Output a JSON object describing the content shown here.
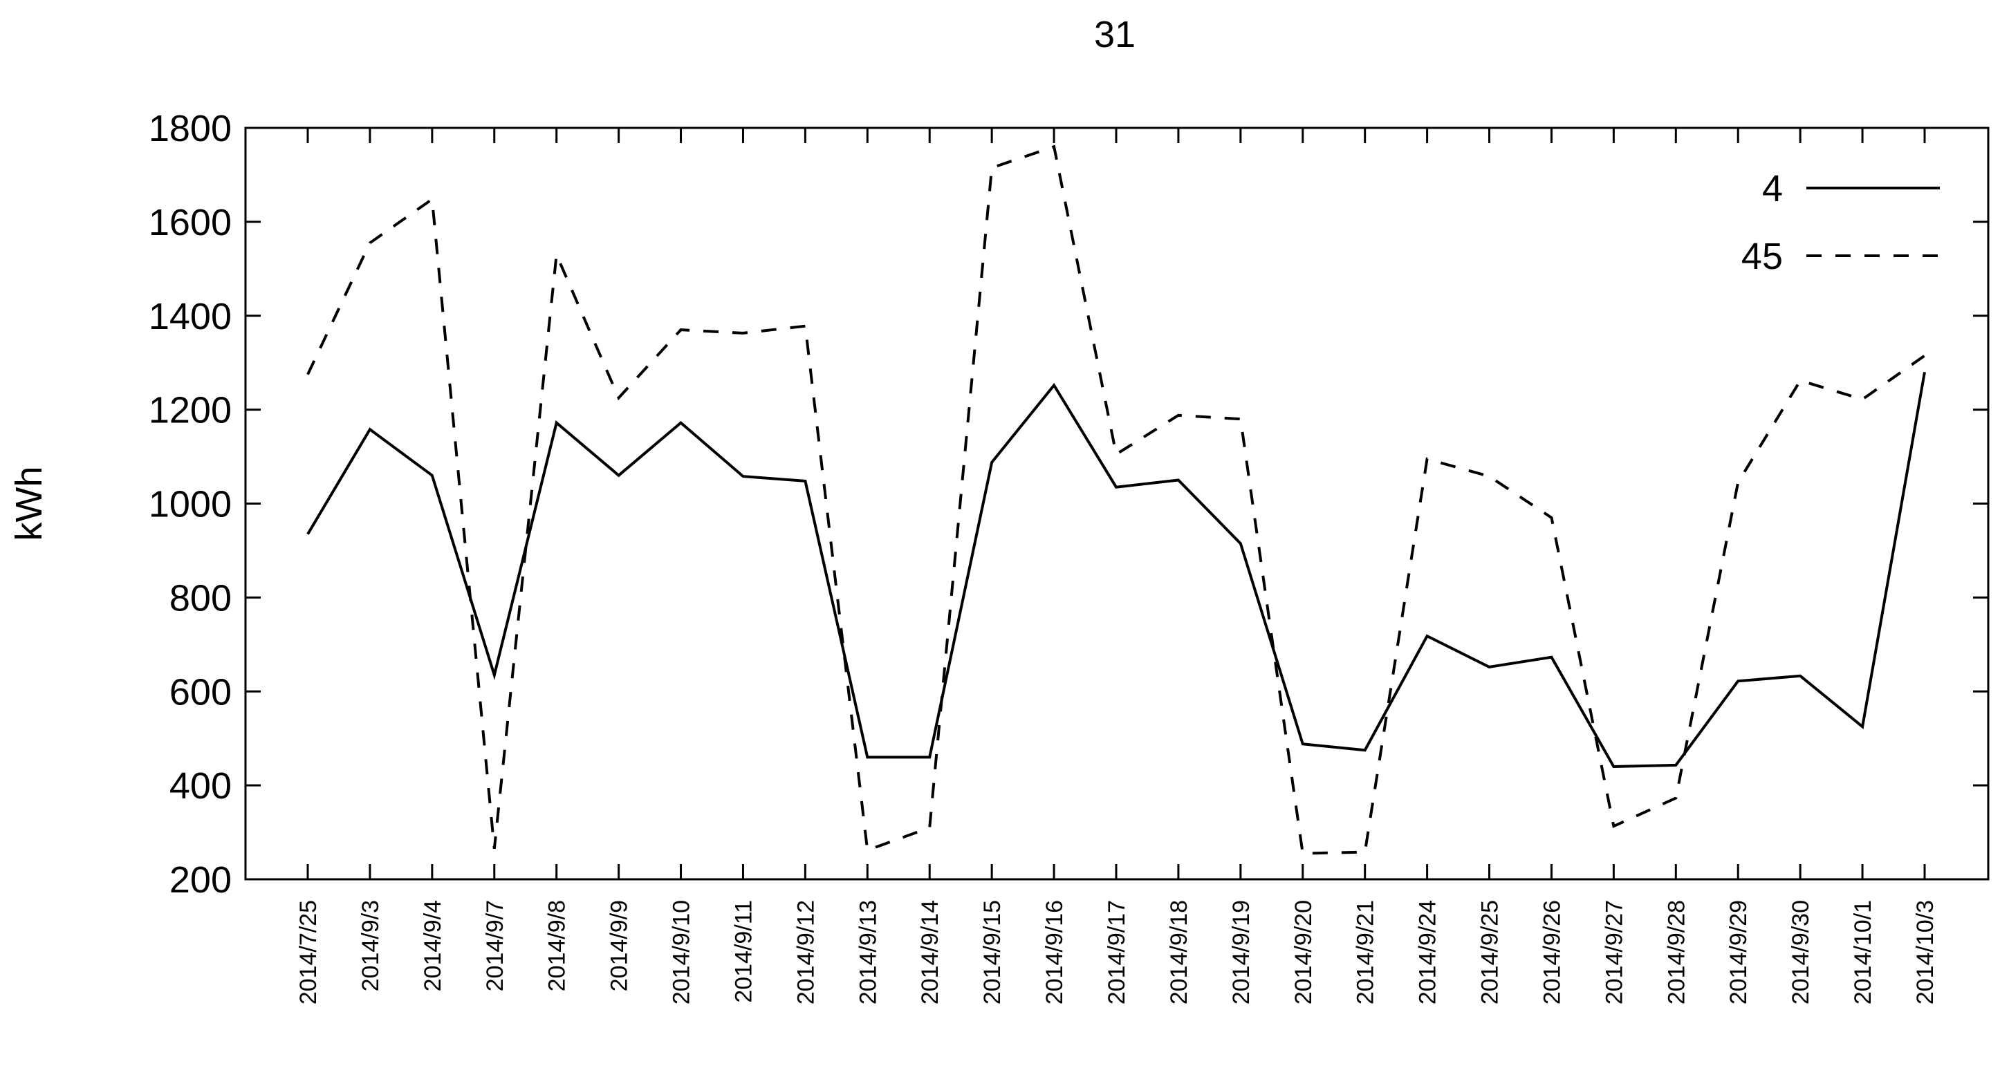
{
  "chart_data": {
    "type": "line",
    "title": "31",
    "xlabel": "",
    "ylabel": "kWh",
    "ylim": [
      200,
      1800
    ],
    "yticks": [
      200,
      400,
      600,
      800,
      1000,
      1200,
      1400,
      1600,
      1800
    ],
    "grid": false,
    "legend_position": "top-right",
    "categories": [
      "2014/7/25",
      "2014/9/3",
      "2014/9/4",
      "2014/9/7",
      "2014/9/8",
      "2014/9/9",
      "2014/9/10",
      "2014/9/11",
      "2014/9/12",
      "2014/9/13",
      "2014/9/14",
      "2014/9/15",
      "2014/9/16",
      "2014/9/17",
      "2014/9/18",
      "2014/9/19",
      "2014/9/20",
      "2014/9/21",
      "2014/9/24",
      "2014/9/25",
      "2014/9/26",
      "2014/9/27",
      "2014/9/28",
      "2014/9/29",
      "2014/9/30",
      "2014/10/1",
      "2014/10/3"
    ],
    "series": [
      {
        "name": "4",
        "dash": "solid",
        "color": "#000000",
        "values": [
          935,
          1158,
          1060,
          635,
          1172,
          1060,
          1172,
          1058,
          1048,
          460,
          460,
          1088,
          1252,
          1035,
          1050,
          915,
          488,
          475,
          718,
          652,
          673,
          440,
          443,
          622,
          633,
          525,
          1280
        ]
      },
      {
        "name": "45",
        "dash": "dashed",
        "color": "#000000",
        "values": [
          1275,
          1555,
          1648,
          265,
          1530,
          1225,
          1370,
          1363,
          1378,
          262,
          310,
          1715,
          1760,
          1105,
          1188,
          1180,
          255,
          258,
          1095,
          1058,
          970,
          313,
          373,
          1045,
          1262,
          1222,
          1315
        ]
      }
    ]
  }
}
